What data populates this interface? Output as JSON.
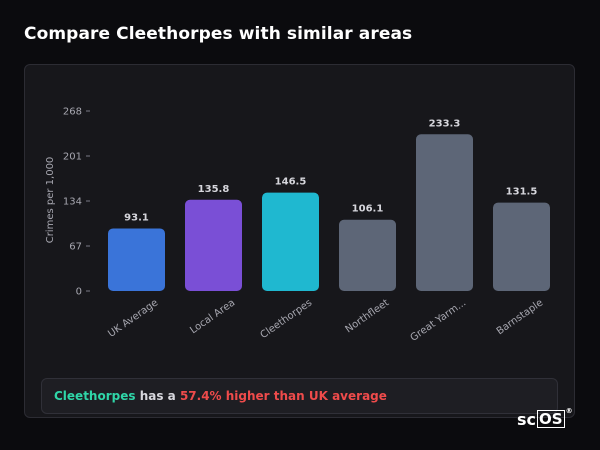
{
  "title": "Compare Cleethorpes with similar areas",
  "chart_data": {
    "type": "bar",
    "ylabel": "Crimes per 1,000",
    "xlabel": "",
    "ylim": [
      0,
      268
    ],
    "yticks": [
      0,
      67,
      134,
      201,
      268
    ],
    "categories": [
      "UK Average",
      "Local Area",
      "Cleethorpes",
      "Northfleet",
      "Great Yarm...",
      "Barnstaple"
    ],
    "values": [
      93.1,
      135.8,
      146.5,
      106.1,
      233.3,
      131.5
    ],
    "value_labels": [
      "93.1",
      "135.8",
      "146.5",
      "106.1",
      "233.3",
      "131.5"
    ],
    "bar_colors": [
      "#3a74d9",
      "#7a4fd6",
      "#1fb8d0",
      "#5d6677",
      "#5d6677",
      "#5d6677"
    ],
    "grid": false
  },
  "summary": {
    "area": "Cleethorpes",
    "middle": " has a ",
    "stat": "57.4% higher than UK average"
  },
  "brand": {
    "prefix": "sc",
    "boxed": "OS",
    "mark": "®"
  },
  "colors": {
    "background": "#0b0b0e",
    "card": "#17171b",
    "highlight": "#2fd6a8",
    "alert": "#ef4b4b"
  }
}
